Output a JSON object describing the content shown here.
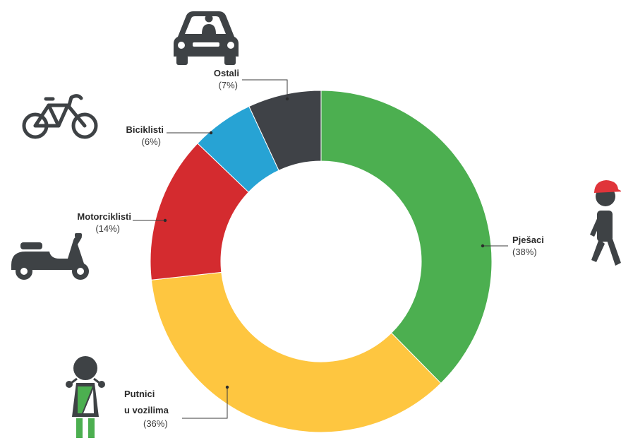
{
  "chart_data": {
    "type": "pie",
    "style": "donut",
    "slices": [
      {
        "label": "Pješaci",
        "value": 38,
        "percent_label": "(38%)",
        "color": "#4caf50"
      },
      {
        "label": "Putnici u vozilima",
        "label_lines": [
          "Putnici",
          "u vozilima"
        ],
        "value": 36,
        "percent_label": "(36%)",
        "color": "#fec640"
      },
      {
        "label": "Motorciklisti",
        "value": 14,
        "percent_label": "(14%)",
        "color": "#d42b2f"
      },
      {
        "label": "Biciklisti",
        "value": 6,
        "percent_label": "(6%)",
        "color": "#27a3d4"
      },
      {
        "label": "Ostali",
        "value": 7,
        "percent_label": "(7%)",
        "color": "#3f4247"
      }
    ]
  },
  "icons": {
    "car": "car-icon",
    "bicycle": "bicycle-icon",
    "scooter": "scooter-icon",
    "pedestrian": "pedestrian-icon",
    "passenger": "child-passenger-icon"
  },
  "colors": {
    "icon": "#3e4245",
    "pedestrian_cap": "#e0343a",
    "passenger_belt": "#4caf50"
  }
}
